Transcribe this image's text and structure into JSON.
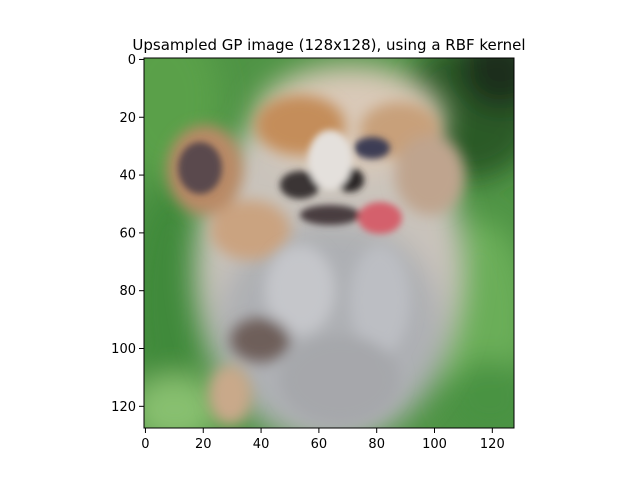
{
  "figure": {
    "title": "Upsampled GP image (128x128), using a RBF kernel"
  },
  "image": {
    "subject": "blurry photo of a small fluffy dog with a pink tongue on a green grass background",
    "colors": {
      "grass_dark": "#2f6a2a",
      "grass_mid": "#4f9445",
      "grass_light": "#86bf6c",
      "fur_cream": "#d8cfc4",
      "fur_gray": "#a8a9ae",
      "fur_tan": "#c69a6d",
      "fur_dark": "#3b3436",
      "tongue": "#d4606c"
    }
  },
  "chart_data": {
    "type": "heatmap",
    "title": "Upsampled GP image (128x128), using a RBF kernel",
    "xlabel": "",
    "ylabel": "",
    "xlim": [
      0,
      128
    ],
    "ylim": [
      128,
      0
    ],
    "x_ticks": [
      "0",
      "20",
      "40",
      "60",
      "80",
      "100",
      "120"
    ],
    "y_ticks": [
      "0",
      "20",
      "40",
      "60",
      "80",
      "100",
      "120"
    ],
    "grid": false
  }
}
